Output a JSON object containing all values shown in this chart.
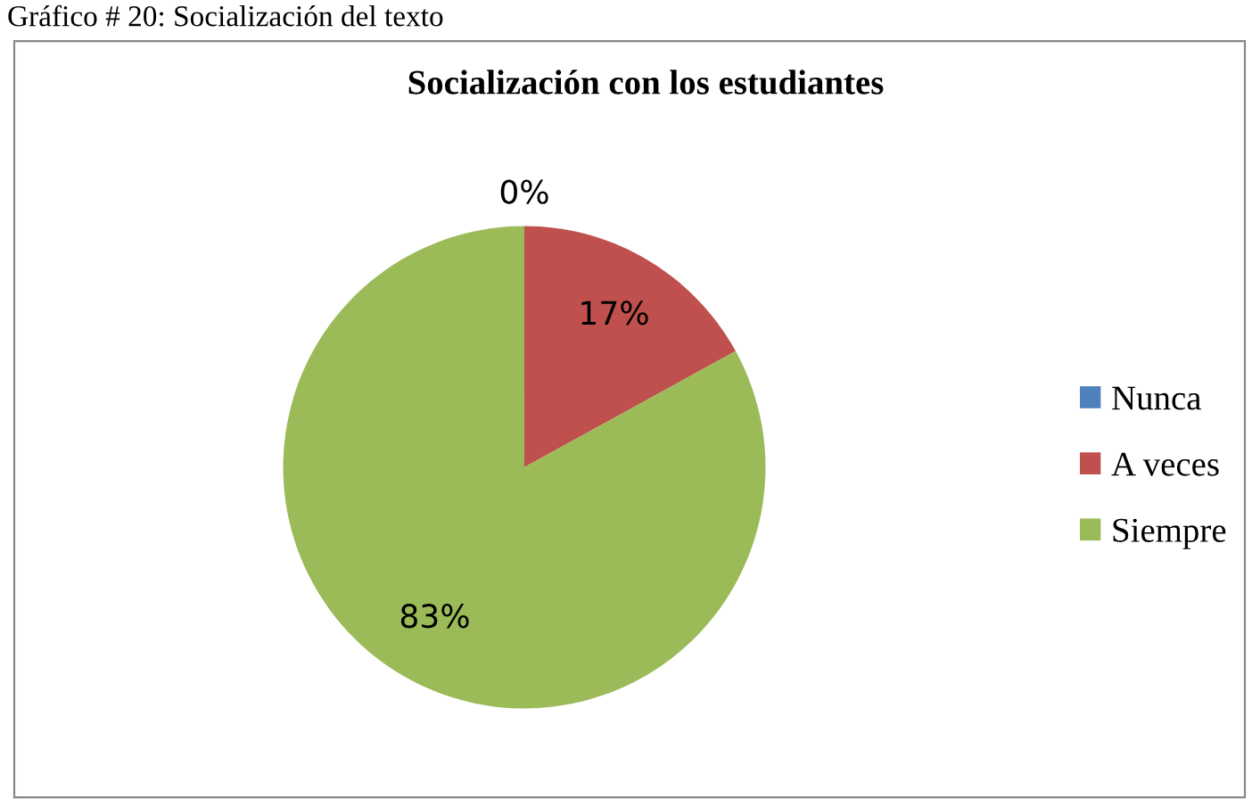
{
  "chart_data": {
    "type": "pie",
    "title": "Socialización con los estudiantes",
    "categories": [
      "Nunca",
      "A veces",
      "Siempre"
    ],
    "values": [
      0,
      17,
      83
    ],
    "colors": [
      "#4f81bd",
      "#c0504d",
      "#9bbb59"
    ],
    "value_labels": [
      "0%",
      "17%",
      "83%"
    ],
    "legend": "right",
    "annotations": [
      "Gráfico # 20: Socialización del texto"
    ]
  }
}
